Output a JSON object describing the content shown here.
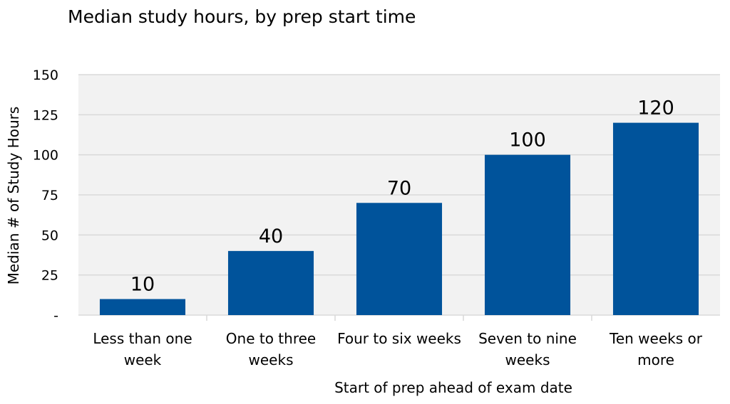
{
  "chart_data": {
    "type": "bar",
    "title": "Median study hours, by prep start time",
    "xlabel": "Start of prep ahead of exam date",
    "ylabel": "Median # of Study Hours",
    "categories": [
      [
        "Less than one",
        "week"
      ],
      [
        "One to three",
        "weeks"
      ],
      [
        "Four to six weeks"
      ],
      [
        "Seven to nine",
        "weeks"
      ],
      [
        "Ten weeks or",
        "more"
      ]
    ],
    "values": [
      10,
      40,
      70,
      100,
      120
    ],
    "data_labels": [
      "10",
      "40",
      "70",
      "100",
      "120"
    ],
    "ylim": [
      0,
      150
    ],
    "yticks": [
      0,
      25,
      50,
      75,
      100,
      125,
      150
    ],
    "ytick_labels": [
      "-",
      "25",
      "50",
      "75",
      "100",
      "125",
      "150"
    ],
    "grid": true,
    "legend": false,
    "colors": {
      "bar": "#00539b",
      "plot_background": "#f2f2f2",
      "gridline": "#d9d9d9"
    }
  }
}
